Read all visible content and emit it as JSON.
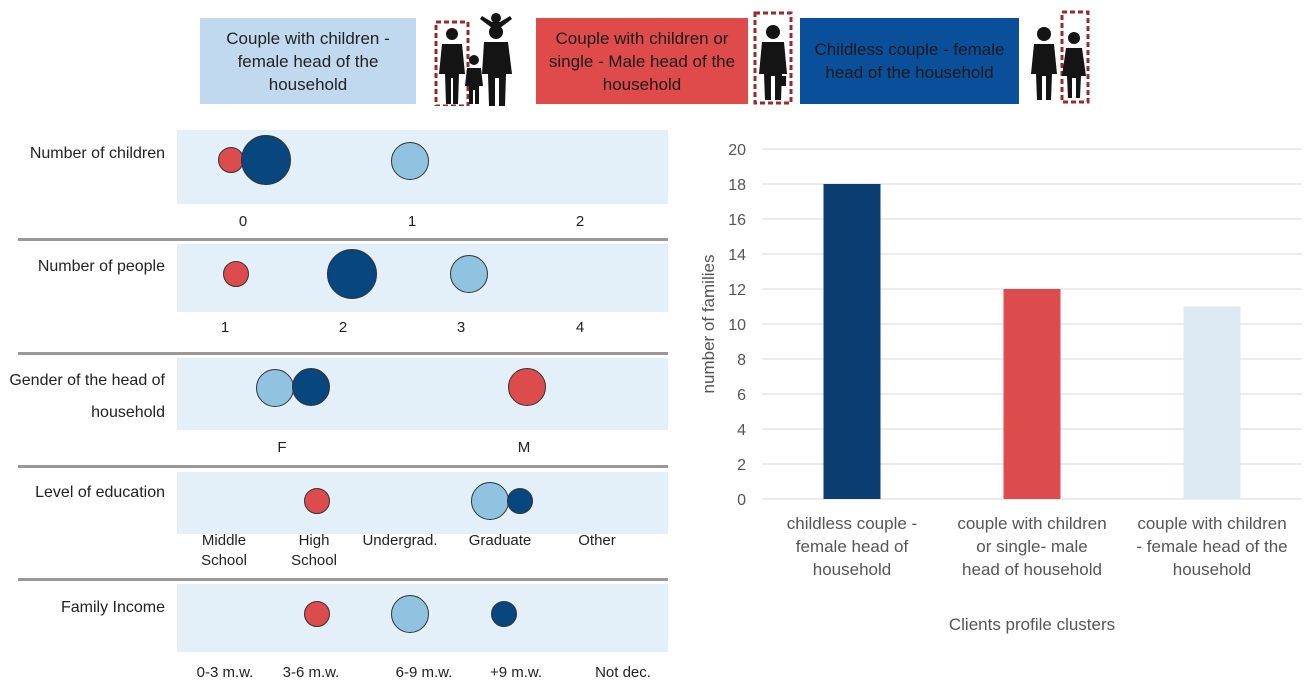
{
  "legend": [
    {
      "label": "Couple with children - female head of the household",
      "color": "#c0d9ee",
      "text_color": "#222222"
    },
    {
      "label": "Couple with children or single - Male head of the household",
      "color": "#df4a4a",
      "text_color": "#1a1a1a"
    },
    {
      "label": "Childless couple - female head of the household",
      "color": "#0a4f9a",
      "text_color": "#1a1a1a"
    }
  ],
  "bubble_colors": {
    "light": "#8fc3e0",
    "red": "#dc4c4c",
    "dark": "#08467e"
  },
  "icons": [
    "family-silhouette-icon",
    "man-silhouette-icon",
    "couple-silhouette-icon"
  ],
  "profiles": [
    {
      "label": "Number of children",
      "categories": [
        "0",
        "1",
        "2"
      ],
      "points": [
        {
          "group": "red",
          "category": "0",
          "size": "small"
        },
        {
          "group": "dark",
          "category": "0",
          "size": "large"
        },
        {
          "group": "light",
          "category": "1",
          "size": "medium"
        }
      ]
    },
    {
      "label": "Number of people",
      "categories": [
        "1",
        "2",
        "3",
        "4"
      ],
      "points": [
        {
          "group": "red",
          "category": "1",
          "size": "small"
        },
        {
          "group": "dark",
          "category": "2",
          "size": "large"
        },
        {
          "group": "light",
          "category": "3",
          "size": "medium"
        }
      ]
    },
    {
      "label": "Gender of the head of household",
      "categories": [
        "F",
        "M"
      ],
      "points": [
        {
          "group": "light",
          "category": "F",
          "size": "medium"
        },
        {
          "group": "dark",
          "category": "F",
          "size": "medium"
        },
        {
          "group": "red",
          "category": "M",
          "size": "medium"
        }
      ]
    },
    {
      "label": "Level of education",
      "categories": [
        "Middle School",
        "High School",
        "Undergrad.",
        "Graduate",
        "Other"
      ],
      "points": [
        {
          "group": "red",
          "category": "High School",
          "size": "small"
        },
        {
          "group": "light",
          "category": "Graduate",
          "size": "medium"
        },
        {
          "group": "dark",
          "category": "Graduate",
          "size": "small"
        }
      ]
    },
    {
      "label": "Family Income",
      "categories": [
        "0-3 m.w.",
        "3-6 m.w.",
        "6-9 m.w.",
        "+9 m.w.",
        "Not dec."
      ],
      "points": [
        {
          "group": "red",
          "category": "3-6 m.w.",
          "size": "small"
        },
        {
          "group": "light",
          "category": "6-9 m.w.",
          "size": "medium"
        },
        {
          "group": "dark",
          "category": "+9 m.w.",
          "size": "small"
        }
      ]
    }
  ],
  "chart_data": {
    "type": "bar",
    "categories": [
      "childless couple - female head of household",
      "couple with children or single- male head of household",
      "couple with children - female head of the household"
    ],
    "values": [
      18,
      12,
      11
    ],
    "colors": [
      "#0b3d73",
      "#dc4c4c",
      "#dce8f2"
    ],
    "xlabel": "Clients profile clusters",
    "ylabel": "number of families",
    "ylim": [
      0,
      20
    ],
    "yticks": [
      0,
      2,
      4,
      6,
      8,
      10,
      12,
      14,
      16,
      18,
      20
    ],
    "grid": true
  }
}
